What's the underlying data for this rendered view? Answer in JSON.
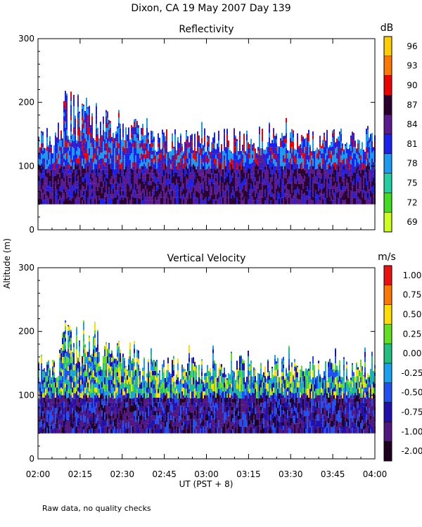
{
  "page": {
    "title": "Dixon, CA 19 May 2007  Day 139",
    "y_axis_label": "Altitude (m)",
    "x_axis_label": "UT  (PST + 8)",
    "footer": "Raw data, no quality checks"
  },
  "chart_data": [
    {
      "type": "heatmap",
      "title": "Reflectivity",
      "ylabel": "Altitude (m)",
      "xlabel": "UT  (PST + 8)",
      "x_range": [
        "02:00",
        "04:00"
      ],
      "ylim": [
        0,
        300
      ],
      "y_ticks": [
        0,
        100,
        200,
        300
      ],
      "x_ticks": [
        "02:00",
        "02:15",
        "02:30",
        "02:45",
        "03:00",
        "03:15",
        "03:30",
        "03:45",
        "04:00"
      ],
      "colorbar": {
        "unit": "dB",
        "labels": [
          "96",
          "93",
          "90",
          "87",
          "84",
          "81",
          "78",
          "75",
          "72",
          "69"
        ],
        "colors": [
          "#ffcc00",
          "#ff7700",
          "#ee0000",
          "#2a0030",
          "#5a1a90",
          "#1a20ee",
          "#1a9af0",
          "#20d0a0",
          "#40dd20",
          "#ccff20"
        ]
      },
      "data_description": "Echo layer between ~40 m and ~140-160 m altitude across the period, with plumes reaching ~220 m near 02:10-02:15."
    },
    {
      "type": "heatmap",
      "title": "Vertical Velocity",
      "ylabel": "Altitude (m)",
      "xlabel": "UT  (PST + 8)",
      "x_range": [
        "02:00",
        "04:00"
      ],
      "ylim": [
        0,
        300
      ],
      "y_ticks": [
        0,
        100,
        200,
        300
      ],
      "x_ticks": [
        "02:00",
        "02:15",
        "02:30",
        "02:45",
        "03:00",
        "03:15",
        "03:30",
        "03:45",
        "04:00"
      ],
      "colorbar": {
        "unit": "m/s",
        "labels": [
          "1.00",
          "0.75",
          "0.50",
          "0.25",
          "0.00",
          "-0.25",
          "-0.50",
          "-0.75",
          "-1.00",
          "-2.00"
        ],
        "colors": [
          "#ee1010",
          "#ff7700",
          "#ffdd00",
          "#60e020",
          "#20c080",
          "#1aa0f0",
          "#2050f0",
          "#2010b0",
          "#501880",
          "#200020"
        ]
      },
      "data_description": "Mostly downward motion (purple) in lower layer 40-100 m, with mixed upward/downward velocities 100-160 m and plumes to ~220 m near 02:12."
    }
  ]
}
